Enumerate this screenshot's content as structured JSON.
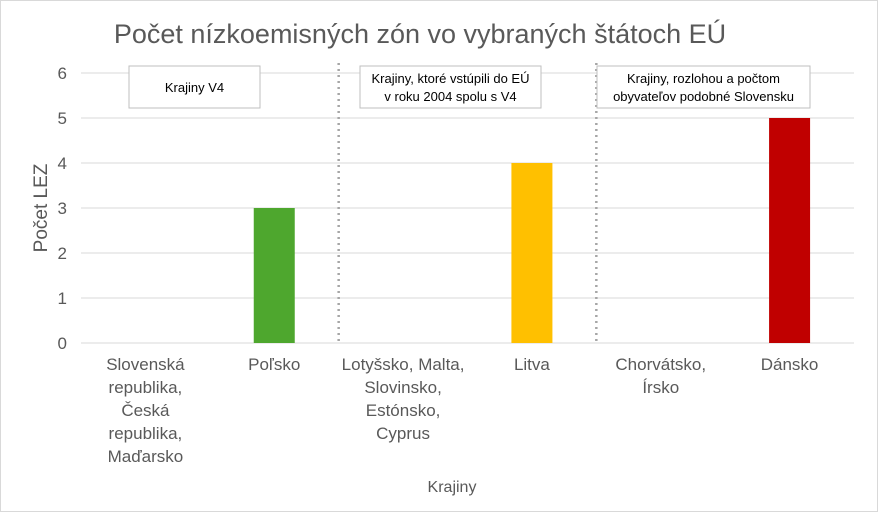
{
  "chart_data": {
    "type": "bar",
    "title": "Počet nízkoemisných zón vo vybraných štátoch EÚ",
    "xlabel": "Krajiny",
    "ylabel": "Počet LEZ",
    "ylim": [
      0,
      6
    ],
    "yticks": [
      "0",
      "1",
      "2",
      "3",
      "4",
      "5",
      "6"
    ],
    "grid": true,
    "categories": [
      [
        "Slovenská",
        "republika,",
        "Česká",
        "republika,",
        "Maďarsko"
      ],
      [
        "Poľsko"
      ],
      [
        "Lotyšsko, Malta,",
        "Slovinsko,",
        "Estónsko,",
        "Cyprus"
      ],
      [
        "Litva"
      ],
      [
        "Chorvátsko,",
        "Írsko"
      ],
      [
        "Dánsko"
      ]
    ],
    "values": [
      0,
      3,
      0,
      4,
      0,
      5
    ],
    "bar_colors": [
      "#4ea72e",
      "#4ea72e",
      "#ffc000",
      "#ffc000",
      "#c00000",
      "#c00000"
    ],
    "group_notes": [
      [
        "Krajiny V4"
      ],
      [
        "Krajiny, ktoré vstúpili do EÚ",
        "v roku 2004 spolu s V4"
      ],
      [
        "Krajiny, rozlohou a počtom",
        "obyvateľov podobné Slovensku"
      ]
    ],
    "colors": {
      "text": "#595959",
      "grid": "#d9d9d9",
      "separator": "#a6a6a6"
    }
  }
}
